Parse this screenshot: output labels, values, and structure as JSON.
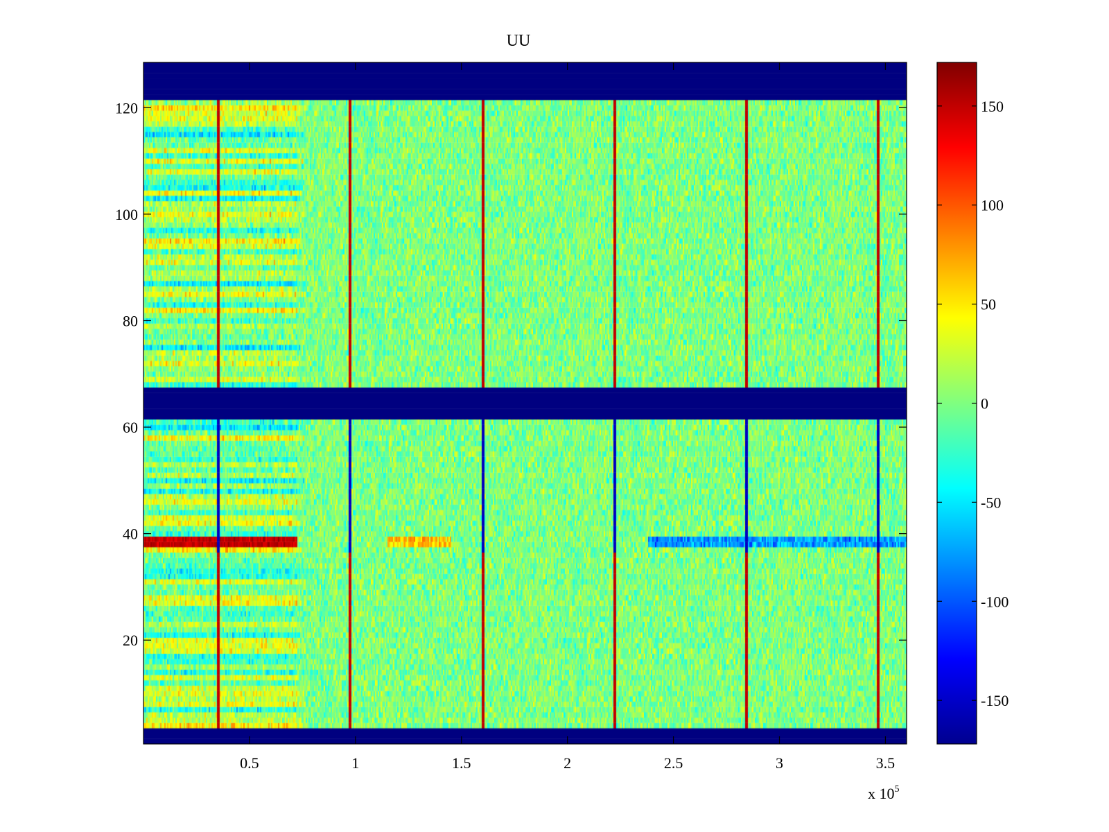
{
  "chart_data": {
    "type": "heatmap",
    "title": "UU",
    "xlabel": "",
    "ylabel": "",
    "x_exponent_label": "x 10",
    "x_exponent_power": "5",
    "xlim": [
      0,
      3.6
    ],
    "ylim": [
      0.5,
      128.5
    ],
    "x_ticks": [
      {
        "value": 0.5,
        "label": "0.5"
      },
      {
        "value": 1,
        "label": "1"
      },
      {
        "value": 1.5,
        "label": "1.5"
      },
      {
        "value": 2,
        "label": "2"
      },
      {
        "value": 2.5,
        "label": "2.5"
      },
      {
        "value": 3,
        "label": "3"
      },
      {
        "value": 3.5,
        "label": "3.5"
      }
    ],
    "y_ticks": [
      {
        "value": 20,
        "label": "20"
      },
      {
        "value": 40,
        "label": "40"
      },
      {
        "value": 60,
        "label": "60"
      },
      {
        "value": 80,
        "label": "80"
      },
      {
        "value": 100,
        "label": "100"
      },
      {
        "value": 120,
        "label": "120"
      }
    ],
    "colorbar": {
      "colormap": "jet",
      "range": [
        -172,
        172
      ],
      "ticks": [
        {
          "value": 150,
          "label": "150"
        },
        {
          "value": 100,
          "label": "100"
        },
        {
          "value": 50,
          "label": "50"
        },
        {
          "value": 0,
          "label": "0"
        },
        {
          "value": -50,
          "label": "-50"
        },
        {
          "value": -100,
          "label": "-100"
        },
        {
          "value": -150,
          "label": "-150"
        }
      ]
    },
    "masked_rows": [
      [
        122,
        128
      ],
      [
        62,
        67
      ],
      [
        1,
        3
      ]
    ],
    "masked_value": -172,
    "background_value": 0,
    "vertical_bands": [
      0.35,
      0.97,
      1.6,
      2.22,
      2.84,
      3.46
    ],
    "grid": false,
    "colors": {
      "masked": "#00008F"
    }
  }
}
